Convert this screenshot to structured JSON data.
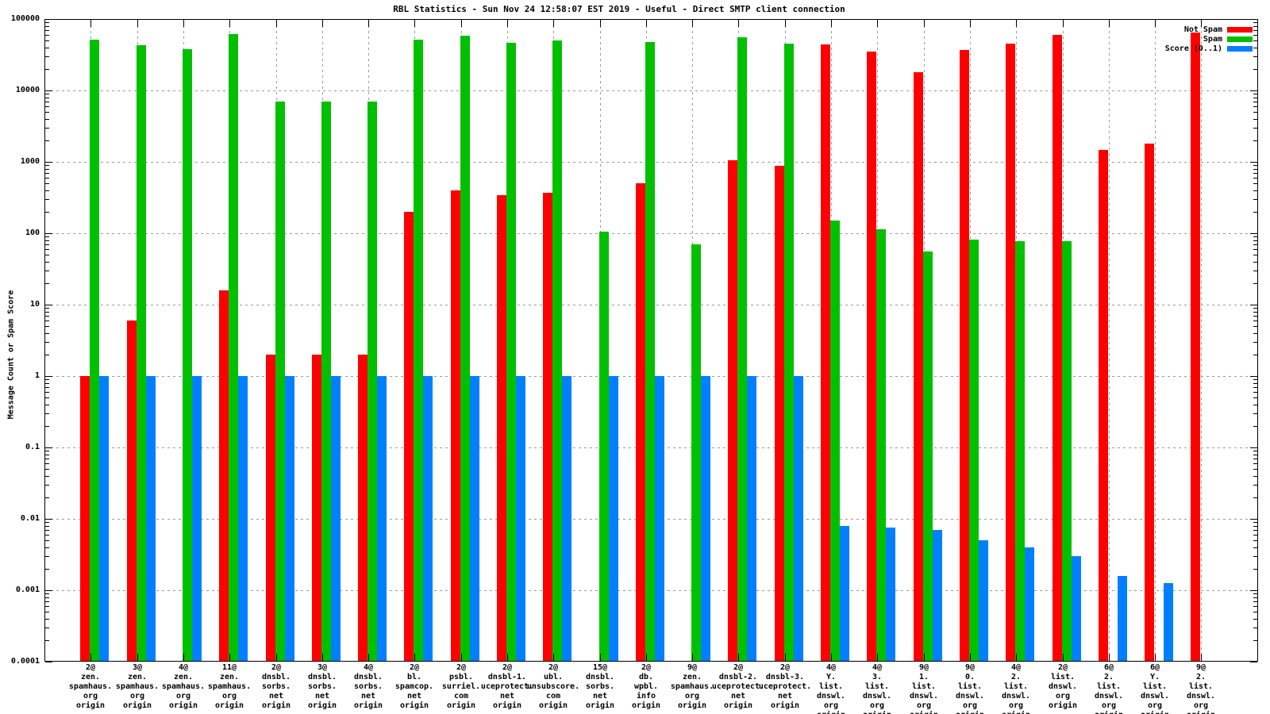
{
  "chart_data": {
    "type": "bar",
    "title": "RBL Statistics - Sun Nov 24 12:58:07 EST 2019 - Useful - Direct SMTP client connection",
    "ylabel": "Message Count or Spam Score",
    "y_scale": "log",
    "ylim": [
      0.0001,
      100000
    ],
    "y_ticks": [
      "100000",
      "10000",
      "1000",
      "100",
      "10",
      "1",
      "0.1",
      "0.01",
      "0.001",
      "0.0001"
    ],
    "grid": true,
    "legend_position": "top-right",
    "series": [
      {
        "key": "not-spam",
        "name": "Not Spam",
        "color": "#ff0000",
        "values": [
          1,
          6,
          null,
          16,
          2,
          2,
          2,
          200,
          400,
          340,
          370,
          null,
          500,
          null,
          1060,
          880,
          44000,
          35000,
          18000,
          37000,
          45000,
          60000,
          1450,
          1800,
          65000
        ]
      },
      {
        "key": "spam",
        "name": "Spam",
        "color": "#00c000",
        "values": [
          52000,
          43000,
          38000,
          62000,
          7000,
          7000,
          7000,
          52000,
          58000,
          47000,
          50000,
          105,
          48000,
          70,
          55000,
          45000,
          150,
          115,
          55,
          82,
          77,
          77,
          null,
          null,
          null
        ]
      },
      {
        "key": "score",
        "name": "Score (0..1)",
        "color": "#0080ff",
        "values": [
          1,
          1,
          1,
          1,
          1,
          1,
          1,
          1,
          1,
          1,
          1,
          1,
          1,
          1,
          1,
          1,
          0.008,
          0.0075,
          0.007,
          0.005,
          0.004,
          0.003,
          0.0016,
          0.00125,
          null
        ]
      }
    ],
    "categories": [
      [
        "2@",
        "zen.",
        "spamhaus.",
        "org",
        "origin"
      ],
      [
        "3@",
        "zen.",
        "spamhaus.",
        "org",
        "origin"
      ],
      [
        "4@",
        "zen.",
        "spamhaus.",
        "org",
        "origin"
      ],
      [
        "11@",
        "zen.",
        "spamhaus.",
        "org",
        "origin"
      ],
      [
        "2@",
        "dnsbl.",
        "sorbs.",
        "net",
        "origin"
      ],
      [
        "3@",
        "dnsbl.",
        "sorbs.",
        "net",
        "origin"
      ],
      [
        "4@",
        "dnsbl.",
        "sorbs.",
        "net",
        "origin"
      ],
      [
        "2@",
        "bl.",
        "spamcop.",
        "net",
        "origin"
      ],
      [
        "2@",
        "psbl.",
        "surriel.",
        "com",
        "origin"
      ],
      [
        "2@",
        "dnsbl-1.",
        "uceprotect.",
        "net",
        "origin"
      ],
      [
        "2@",
        "ubl.",
        "unsubscore.",
        "com",
        "origin"
      ],
      [
        "15@",
        "dnsbl.",
        "sorbs.",
        "net",
        "origin"
      ],
      [
        "2@",
        "db.",
        "wpbl.",
        "info",
        "origin"
      ],
      [
        "9@",
        "zen.",
        "spamhaus.",
        "org",
        "origin"
      ],
      [
        "2@",
        "dnsbl-2.",
        "uceprotect.",
        "net",
        "origin"
      ],
      [
        "2@",
        "dnsbl-3.",
        "uceprotect.",
        "net",
        "origin"
      ],
      [
        "4@",
        "Y.",
        "list.",
        "dnswl.",
        "org",
        "origin"
      ],
      [
        "4@",
        "3.",
        "list.",
        "dnswl.",
        "org",
        "origin"
      ],
      [
        "9@",
        "1.",
        "list.",
        "dnswl.",
        "org",
        "origin"
      ],
      [
        "9@",
        "0.",
        "list.",
        "dnswl.",
        "org",
        "origin"
      ],
      [
        "4@",
        "2.",
        "list.",
        "dnswl.",
        "org",
        "origin"
      ],
      [
        "2@",
        "list.",
        "dnswl.",
        "org",
        "origin"
      ],
      [
        "6@",
        "2.",
        "list.",
        "dnswl.",
        "org",
        "origin"
      ],
      [
        "6@",
        "Y.",
        "list.",
        "dnswl.",
        "org",
        "origin"
      ],
      [
        "9@",
        "2.",
        "list.",
        "dnswl.",
        "org",
        "origin"
      ]
    ]
  }
}
